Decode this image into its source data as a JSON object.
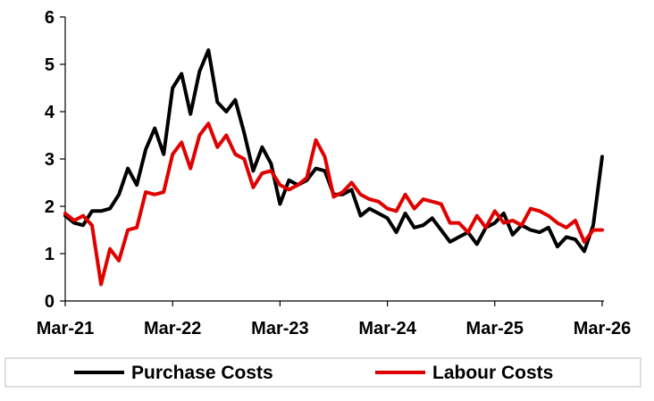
{
  "chart_data": {
    "type": "line",
    "x_tick_labels": [
      "Mar-21",
      "Mar-22",
      "Mar-23",
      "Mar-24",
      "Mar-25",
      "Mar-26"
    ],
    "y_tick_labels": [
      "0",
      "1",
      "2",
      "3",
      "4",
      "5",
      "6"
    ],
    "ylim": [
      0,
      6
    ],
    "x_range_months": [
      0,
      60
    ],
    "grid": false,
    "legend_position": "bottom",
    "series": [
      {
        "name": "Purchase Costs",
        "color": "#000000",
        "values": [
          1.8,
          1.65,
          1.6,
          1.9,
          1.9,
          1.95,
          2.25,
          2.8,
          2.45,
          3.2,
          3.65,
          3.1,
          4.5,
          4.8,
          3.95,
          4.85,
          5.3,
          4.2,
          4.0,
          4.25,
          3.55,
          2.75,
          3.25,
          2.9,
          2.05,
          2.55,
          2.45,
          2.55,
          2.8,
          2.75,
          2.25,
          2.25,
          2.35,
          1.8,
          1.95,
          1.85,
          1.75,
          1.45,
          1.85,
          1.55,
          1.6,
          1.75,
          1.5,
          1.25,
          1.35,
          1.45,
          1.2,
          1.55,
          1.65,
          1.85,
          1.4,
          1.6,
          1.5,
          1.45,
          1.55,
          1.15,
          1.35,
          1.3,
          1.05,
          1.6,
          3.05
        ]
      },
      {
        "name": "Labour Costs",
        "color": "#e00000",
        "values": [
          1.85,
          1.7,
          1.8,
          1.6,
          0.35,
          1.1,
          0.85,
          1.5,
          1.55,
          2.3,
          2.25,
          2.3,
          3.1,
          3.35,
          2.8,
          3.5,
          3.75,
          3.25,
          3.5,
          3.1,
          3.0,
          2.4,
          2.7,
          2.75,
          2.45,
          2.35,
          2.45,
          2.6,
          3.4,
          3.05,
          2.2,
          2.3,
          2.5,
          2.25,
          2.15,
          2.1,
          1.95,
          1.9,
          2.25,
          1.95,
          2.15,
          2.1,
          2.05,
          1.65,
          1.65,
          1.45,
          1.8,
          1.55,
          1.9,
          1.65,
          1.7,
          1.6,
          1.95,
          1.9,
          1.8,
          1.65,
          1.55,
          1.7,
          1.25,
          1.5,
          1.5
        ]
      }
    ]
  }
}
